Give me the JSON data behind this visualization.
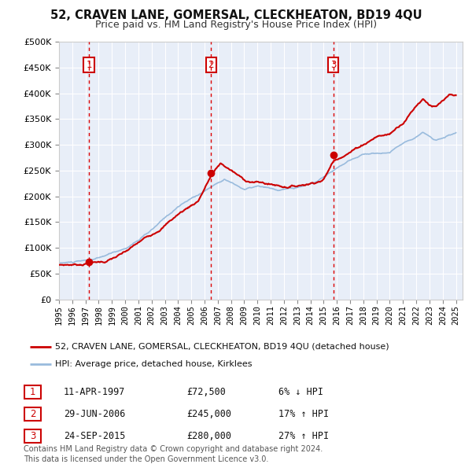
{
  "title": "52, CRAVEN LANE, GOMERSAL, CLECKHEATON, BD19 4QU",
  "subtitle": "Price paid vs. HM Land Registry's House Price Index (HPI)",
  "ylim": [
    0,
    500000
  ],
  "yticks": [
    0,
    50000,
    100000,
    150000,
    200000,
    250000,
    300000,
    350000,
    400000,
    450000,
    500000
  ],
  "ytick_labels": [
    "£0",
    "£50K",
    "£100K",
    "£150K",
    "£200K",
    "£250K",
    "£300K",
    "£350K",
    "£400K",
    "£450K",
    "£500K"
  ],
  "xlim_start": 1995.0,
  "xlim_end": 2025.5,
  "xtick_years": [
    1995,
    1996,
    1997,
    1998,
    1999,
    2000,
    2001,
    2002,
    2003,
    2004,
    2005,
    2006,
    2007,
    2008,
    2009,
    2010,
    2011,
    2012,
    2013,
    2014,
    2015,
    2016,
    2017,
    2018,
    2019,
    2020,
    2021,
    2022,
    2023,
    2024,
    2025
  ],
  "plot_bg_color": "#e8eef8",
  "grid_color": "#ffffff",
  "sale_color": "#cc0000",
  "hpi_color": "#99bbdd",
  "vline_color": "#dd0000",
  "marker_color": "#cc0000",
  "sale_label": "52, CRAVEN LANE, GOMERSAL, CLECKHEATON, BD19 4QU (detached house)",
  "hpi_label": "HPI: Average price, detached house, Kirklees",
  "transactions": [
    {
      "num": 1,
      "year": 1997.27,
      "price": 72500,
      "date_str": "11-APR-1997",
      "price_str": "£72,500",
      "pct_str": "6% ↓ HPI"
    },
    {
      "num": 2,
      "year": 2006.49,
      "price": 245000,
      "date_str": "29-JUN-2006",
      "price_str": "£245,000",
      "pct_str": "17% ↑ HPI"
    },
    {
      "num": 3,
      "year": 2015.73,
      "price": 280000,
      "date_str": "24-SEP-2015",
      "price_str": "£280,000",
      "pct_str": "27% ↑ HPI"
    }
  ],
  "footer_text": "Contains HM Land Registry data © Crown copyright and database right 2024.\nThis data is licensed under the Open Government Licence v3.0."
}
